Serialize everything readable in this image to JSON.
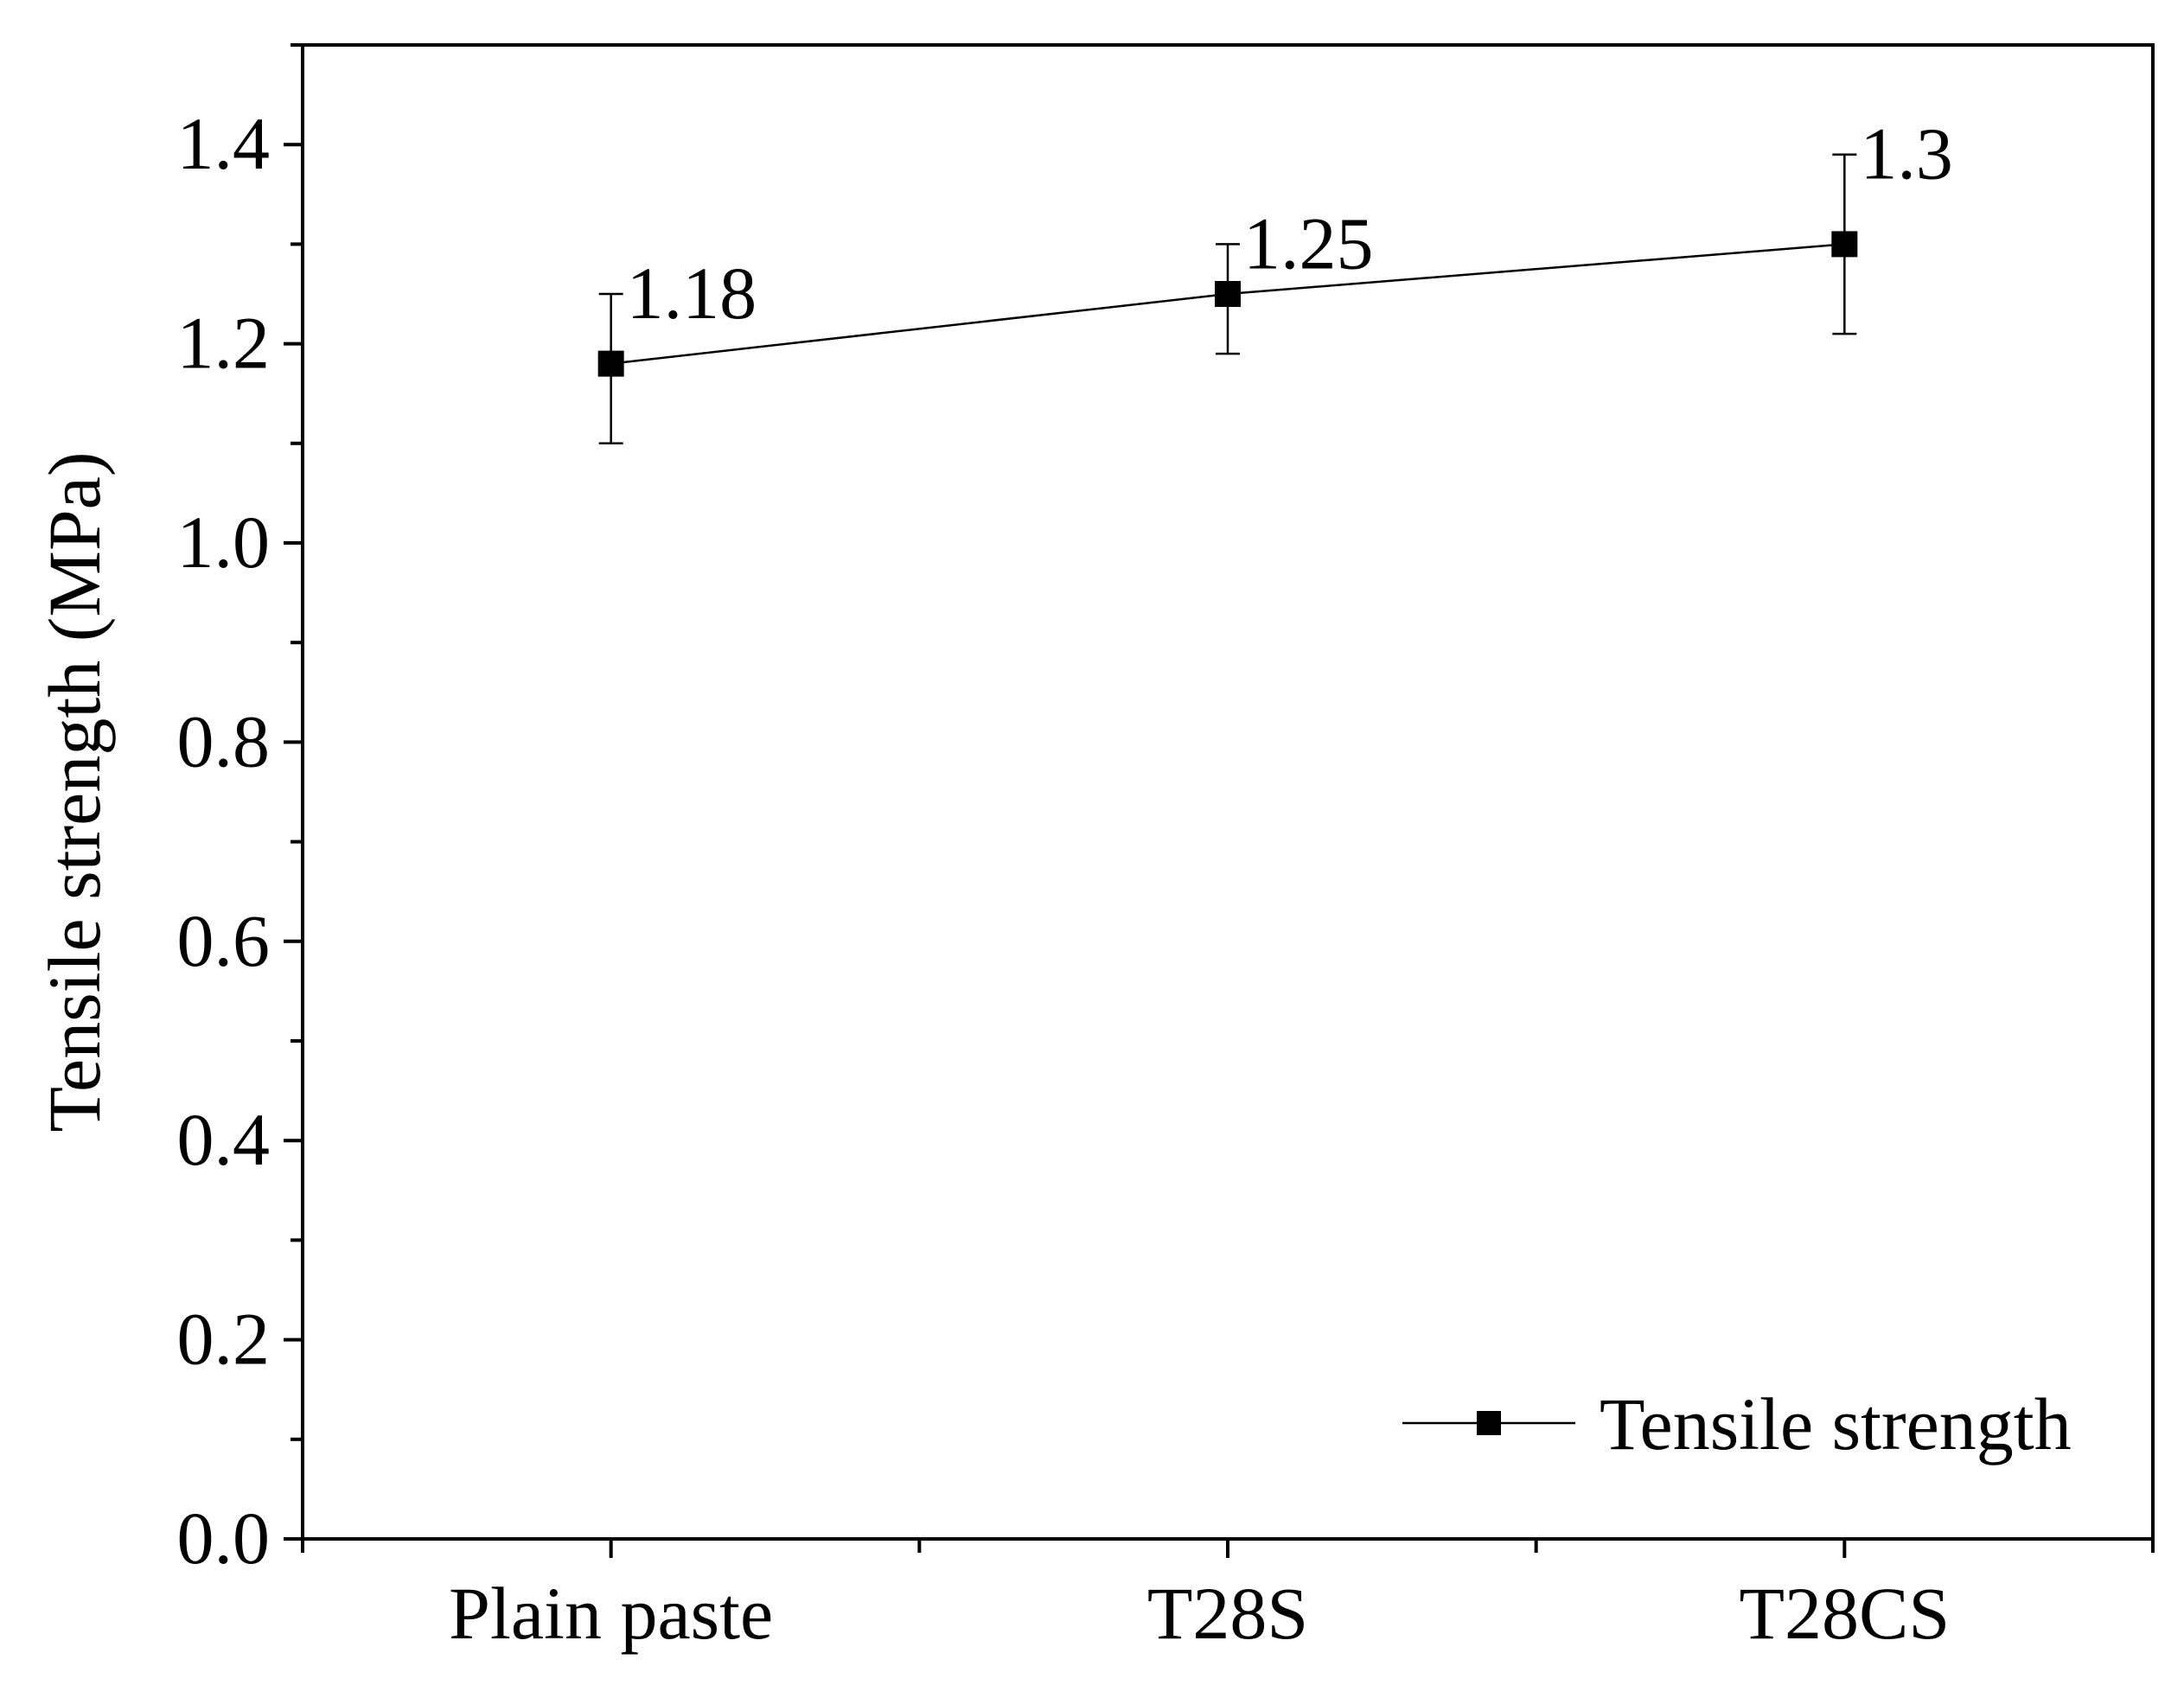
{
  "chart_data": {
    "type": "line",
    "title": "",
    "xlabel": "",
    "ylabel": "Tensile strength (MPa)",
    "categories": [
      "Plain paste",
      "T28S",
      "T28CS"
    ],
    "ylim": [
      0.0,
      1.5
    ],
    "yticks": [
      0.0,
      0.2,
      0.4,
      0.6,
      0.8,
      1.0,
      1.2,
      1.4
    ],
    "ytick_labels": [
      "0.0",
      "0.2",
      "0.4",
      "0.6",
      "0.8",
      "1.0",
      "1.2",
      "1.4"
    ],
    "grid": false,
    "legend_position": "bottom-right",
    "series": [
      {
        "name": "Tensile strength",
        "values": [
          1.18,
          1.25,
          1.3
        ],
        "error_low": [
          1.1,
          1.19,
          1.21
        ],
        "error_high": [
          1.25,
          1.3,
          1.39
        ],
        "data_labels": [
          "1.18",
          "1.25",
          "1.3"
        ],
        "marker": "square",
        "color": "#000000"
      }
    ]
  }
}
